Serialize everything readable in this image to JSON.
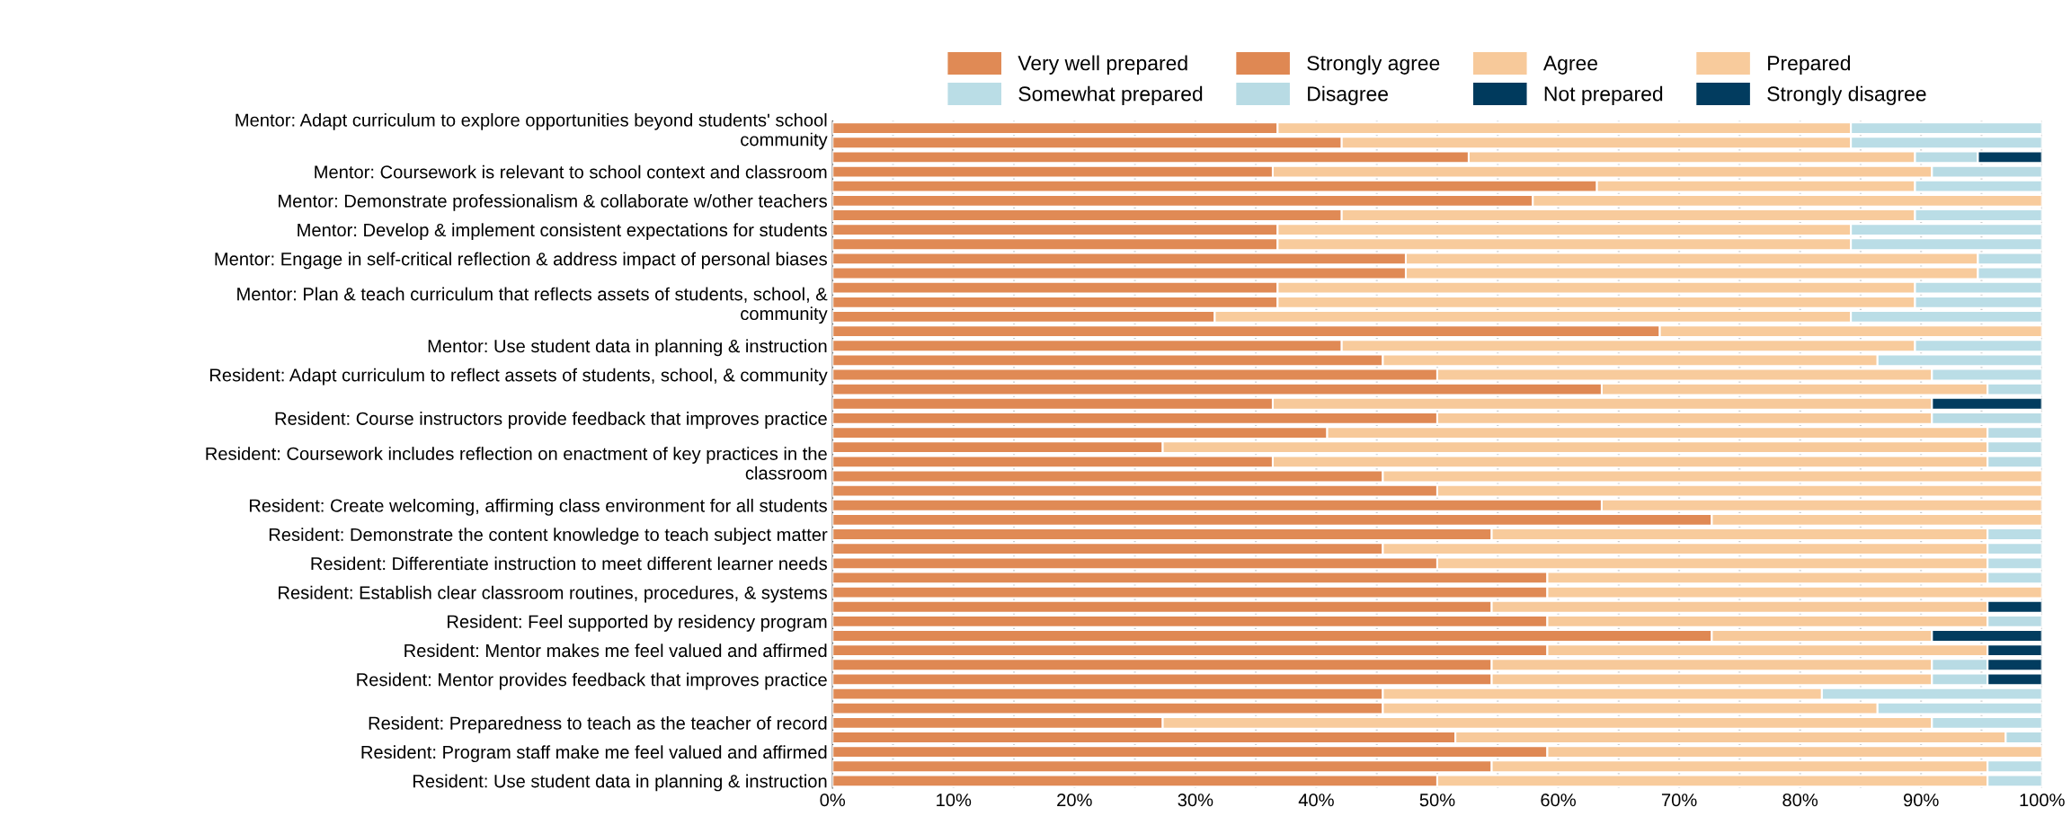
{
  "chart_data": {
    "type": "bar",
    "orientation": "horizontal",
    "stacked": true,
    "categories": [
      "Mentor: Adapt curriculum to explore opportunities beyond students' school\ncommunity",
      null,
      null,
      "Mentor: Coursework is relevant to school context and classroom",
      null,
      "Mentor: Demonstrate professionalism & collaborate w/other teachers",
      null,
      "Mentor: Develop & implement consistent expectations for students",
      null,
      "Mentor: Engage in self-critical reflection & address impact of personal biases",
      null,
      null,
      "Mentor: Plan & teach curriculum that reflects assets of students, school, &\ncommunity",
      null,
      null,
      "Mentor: Use student data in planning & instruction",
      null,
      "Resident: Adapt curriculum to reflect assets of students, school, & community",
      null,
      null,
      "Resident: Course instructors provide feedback that improves practice",
      null,
      null,
      "Resident: Coursework includes reflection on enactment of key practices in the\nclassroom",
      null,
      null,
      "Resident: Create welcoming, affirming class environment for all students",
      null,
      "Resident: Demonstrate the content knowledge to teach subject matter",
      null,
      "Resident: Differentiate instruction to meet different learner needs",
      null,
      "Resident: Establish clear classroom routines, procedures, & systems",
      null,
      "Resident: Feel supported by residency program",
      null,
      "Resident: Mentor makes me feel valued and affirmed",
      null,
      "Resident: Mentor provides feedback that improves practice",
      null,
      null,
      "Resident: Preparedness to teach as the teacher of record",
      null,
      "Resident: Program staff make me feel valued and affirmed",
      null,
      "Resident: Use student data in planning & instruction"
    ],
    "series": [
      {
        "name": "Very well prepared",
        "color": "#e08a55",
        "values": [
          36.8,
          42.1,
          null,
          null,
          63.2,
          57.9,
          42.1,
          36.8,
          36.8,
          47.4,
          47.4,
          36.8,
          36.8,
          31.6,
          68.4,
          42.1,
          45.5,
          50,
          null,
          null,
          null,
          null,
          null,
          null,
          45.5,
          50,
          63.6,
          72.7,
          54.5,
          45.5,
          50,
          59.1,
          59.1,
          null,
          null,
          null,
          null,
          null,
          null,
          45.5,
          45.5,
          27.3,
          null,
          null,
          54.5,
          50
        ]
      },
      {
        "name": "Strongly agree",
        "color": "#df8853",
        "values": [
          null,
          null,
          52.6,
          36.4,
          null,
          null,
          null,
          null,
          null,
          null,
          null,
          null,
          null,
          null,
          null,
          null,
          null,
          null,
          63.6,
          36.4,
          50,
          40.9,
          27.3,
          36.4,
          null,
          null,
          null,
          null,
          null,
          null,
          null,
          null,
          null,
          54.5,
          59.1,
          72.7,
          59.1,
          54.5,
          54.5,
          null,
          null,
          null,
          51.5,
          59.1,
          null,
          null
        ]
      },
      {
        "name": "Agree",
        "color": "#f7c99a",
        "values": [
          null,
          null,
          36.9,
          54.5,
          null,
          null,
          null,
          null,
          null,
          null,
          null,
          null,
          null,
          null,
          null,
          null,
          null,
          null,
          31.9,
          54.5,
          40.9,
          54.6,
          68.2,
          59.1,
          null,
          null,
          null,
          null,
          null,
          null,
          null,
          null,
          null,
          41.0,
          36.4,
          18.2,
          36.4,
          36.4,
          36.4,
          null,
          null,
          null,
          45.5,
          40.9,
          null,
          null
        ]
      },
      {
        "name": "Prepared",
        "color": "#f8cb9c",
        "values": [
          47.4,
          42.1,
          null,
          null,
          26.3,
          42.1,
          47.4,
          47.4,
          47.4,
          47.3,
          47.3,
          52.7,
          52.7,
          52.6,
          31.6,
          47.4,
          40.9,
          40.9,
          null,
          null,
          null,
          null,
          null,
          null,
          54.5,
          50,
          36.4,
          27.3,
          41.0,
          50.0,
          45.5,
          36.4,
          40.9,
          null,
          null,
          null,
          null,
          null,
          null,
          36.3,
          40.9,
          63.6,
          null,
          null,
          41.0,
          45.5
        ]
      },
      {
        "name": "Somewhat prepared",
        "color": "#badde6",
        "values": [
          15.8,
          15.8,
          null,
          null,
          10.5,
          null,
          10.5,
          15.8,
          15.8,
          5.3,
          5.3,
          10.5,
          10.5,
          15.8,
          null,
          10.5,
          13.6,
          9.1,
          null,
          null,
          null,
          null,
          null,
          null,
          null,
          null,
          null,
          null,
          4.5,
          4.5,
          4.5,
          4.5,
          null,
          null,
          null,
          null,
          null,
          null,
          null,
          18.2,
          13.6,
          9.1,
          null,
          null,
          4.5,
          4.5
        ]
      },
      {
        "name": "Disagree",
        "color": "#b8dbe4",
        "values": [
          null,
          null,
          5.2,
          9.1,
          null,
          null,
          null,
          null,
          null,
          null,
          null,
          null,
          null,
          null,
          null,
          null,
          null,
          null,
          4.5,
          null,
          9.1,
          4.5,
          4.5,
          4.5,
          null,
          null,
          null,
          null,
          null,
          null,
          null,
          null,
          null,
          null,
          4.5,
          null,
          null,
          4.6,
          4.6,
          null,
          null,
          null,
          3.0,
          null,
          null,
          null
        ]
      },
      {
        "name": "Not prepared",
        "color": "#003a5d",
        "values": [
          null,
          null,
          null,
          null,
          null,
          null,
          null,
          null,
          null,
          null,
          null,
          null,
          null,
          null,
          null,
          null,
          null,
          null,
          null,
          null,
          null,
          null,
          null,
          null,
          null,
          null,
          null,
          null,
          null,
          null,
          null,
          null,
          null,
          null,
          null,
          null,
          null,
          null,
          null,
          null,
          null,
          null,
          null,
          null,
          null,
          null
        ]
      },
      {
        "name": "Strongly disagree",
        "color": "#023c5f",
        "values": [
          null,
          null,
          5.3,
          null,
          null,
          null,
          null,
          null,
          null,
          null,
          null,
          null,
          null,
          null,
          null,
          null,
          null,
          null,
          null,
          9.1,
          null,
          null,
          null,
          null,
          null,
          null,
          null,
          null,
          null,
          null,
          null,
          null,
          null,
          4.5,
          null,
          9.1,
          4.5,
          4.5,
          4.5,
          null,
          null,
          null,
          null,
          null,
          null,
          null
        ]
      }
    ],
    "xlim": [
      0,
      100
    ],
    "xticks": [
      {
        "value": 0,
        "label": "0%"
      },
      {
        "value": 5,
        "label": null
      },
      {
        "value": 10,
        "label": "10%"
      },
      {
        "value": 15,
        "label": null
      },
      {
        "value": 20,
        "label": "20%"
      },
      {
        "value": 25,
        "label": null
      },
      {
        "value": 30,
        "label": "30%"
      },
      {
        "value": 35,
        "label": null
      },
      {
        "value": 40,
        "label": "40%"
      },
      {
        "value": 45,
        "label": null
      },
      {
        "value": 50,
        "label": "50%"
      },
      {
        "value": 55,
        "label": null
      },
      {
        "value": 60,
        "label": "60%"
      },
      {
        "value": 65,
        "label": null
      },
      {
        "value": 70,
        "label": "70%"
      },
      {
        "value": 75,
        "label": null
      },
      {
        "value": 80,
        "label": "80%"
      },
      {
        "value": 85,
        "label": null
      },
      {
        "value": 90,
        "label": "90%"
      },
      {
        "value": 95,
        "label": null
      },
      {
        "value": 100,
        "label": "100%"
      }
    ],
    "grid": "x",
    "legend": "top"
  }
}
